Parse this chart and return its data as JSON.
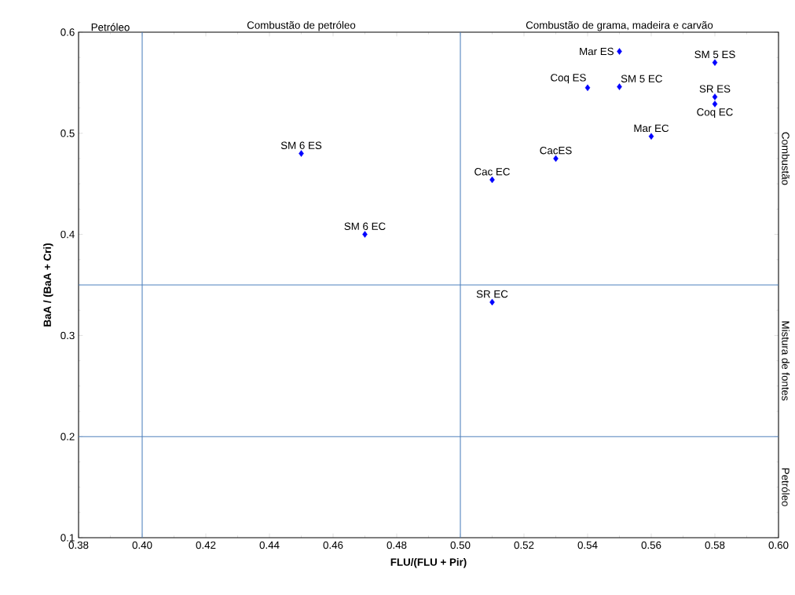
{
  "chart_data": {
    "type": "scatter",
    "xlabel": "FLU/(FLU + Pir)",
    "ylabel": "BaA / (BaA + Cri)",
    "xlim": [
      0.38,
      0.6
    ],
    "ylim": [
      0.1,
      0.6
    ],
    "xticks": [
      0.38,
      {
        "value": 0.4,
        "label": "0.40"
      },
      0.42,
      0.44,
      0.46,
      0.48,
      {
        "value": 0.5,
        "label": "0.50"
      },
      0.52,
      0.54,
      0.56,
      0.58,
      {
        "value": 0.6,
        "label": "0.60"
      }
    ],
    "yticks": [
      0.1,
      0.2,
      0.3,
      0.4,
      0.5,
      0.6
    ],
    "grid": false,
    "marker": "diamond",
    "series": [
      {
        "color": "#0000ff",
        "x": [
          0.45,
          0.47,
          0.51,
          0.53,
          0.51,
          0.54,
          0.55,
          0.55,
          0.56,
          0.58,
          0.58,
          0.58
        ],
        "values": [
          0.48,
          0.4,
          0.454,
          0.475,
          0.333,
          0.545,
          0.546,
          0.581,
          0.497,
          0.57,
          0.536,
          0.529
        ]
      }
    ],
    "ref_lines": [
      {
        "axis": "x",
        "value": 0.4,
        "color": "#4f81bd"
      },
      {
        "axis": "x",
        "value": 0.5,
        "color": "#4f81bd"
      },
      {
        "axis": "y",
        "value": 0.35,
        "color": "#4f81bd"
      },
      {
        "axis": "y",
        "value": 0.2,
        "color": "#4f81bd"
      }
    ],
    "annotations": [
      "Petróleo",
      "Combustão de petróleo",
      "Combustão de grama, madeira e carvão",
      "Combustão",
      "Mistura de fontes",
      "Petróleo",
      {
        "text": "SM 6 ES",
        "x": 0.45,
        "y": 0.48
      },
      {
        "text": "SM 6 EC",
        "x": 0.47,
        "y": 0.4
      },
      {
        "text": "Cac EC",
        "x": 0.51,
        "y": 0.454
      },
      {
        "text": "CacES",
        "x": 0.53,
        "y": 0.475
      },
      {
        "text": "SR EC",
        "x": 0.51,
        "y": 0.333
      },
      {
        "text": "Coq ES",
        "x": 0.54,
        "y": 0.545
      },
      {
        "text": "SM 5 EC",
        "x": 0.55,
        "y": 0.546
      },
      {
        "text": "Mar ES",
        "x": 0.55,
        "y": 0.581
      },
      {
        "text": "Mar EC",
        "x": 0.56,
        "y": 0.497
      },
      {
        "text": "SM 5 ES",
        "x": 0.58,
        "y": 0.57
      },
      {
        "text": "SR ES",
        "x": 0.58,
        "y": 0.536
      },
      {
        "text": "Coq EC",
        "x": 0.58,
        "y": 0.529
      }
    ]
  }
}
